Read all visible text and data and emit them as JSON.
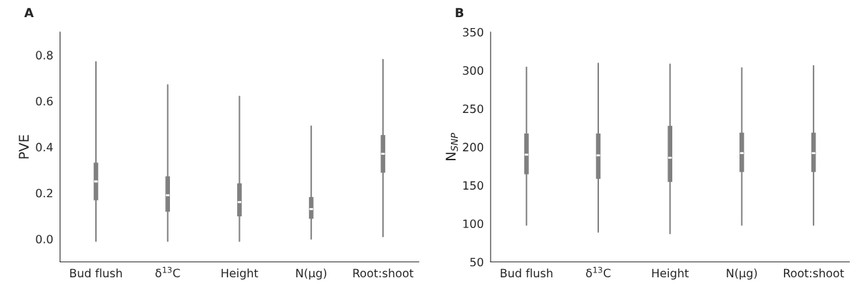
{
  "chart_data": [
    {
      "type": "box",
      "title": "A",
      "ylabel": "PVE",
      "categories": [
        "Bud flush",
        "δ$^{13}$C",
        "Height",
        "N(μg)",
        "Root:shoot"
      ],
      "series": [
        {
          "color": "#808080",
          "boxes": [
            {
              "low": -0.01,
              "q1": 0.17,
              "median": 0.25,
              "q3": 0.33,
              "high": 0.77
            },
            {
              "low": -0.01,
              "q1": 0.12,
              "median": 0.19,
              "q3": 0.27,
              "high": 0.67
            },
            {
              "low": -0.01,
              "q1": 0.1,
              "median": 0.16,
              "q3": 0.24,
              "high": 0.62
            },
            {
              "low": 0.0,
              "q1": 0.09,
              "median": 0.13,
              "q3": 0.18,
              "high": 0.49
            },
            {
              "low": 0.01,
              "q1": 0.29,
              "median": 0.37,
              "q3": 0.45,
              "high": 0.78
            }
          ]
        }
      ],
      "ylim": [
        -0.1,
        0.9
      ],
      "yticks": [
        {
          "value": 0,
          "label": "0.0"
        },
        0.2,
        0.4,
        0.6,
        0.8
      ],
      "grid": false
    },
    {
      "type": "box",
      "title": "B",
      "ylabel": "N$_{SNP}$",
      "categories": [
        "Bud flush",
        "δ$^{13}$C",
        "Height",
        "N(μg)",
        "Root:shoot"
      ],
      "series": [
        {
          "color": "#808080",
          "boxes": [
            {
              "low": 98,
              "q1": 165,
              "median": 190,
              "q3": 217,
              "high": 304
            },
            {
              "low": 89,
              "q1": 159,
              "median": 189,
              "q3": 217,
              "high": 309
            },
            {
              "low": 87,
              "q1": 155,
              "median": 186,
              "q3": 227,
              "high": 308
            },
            {
              "low": 98,
              "q1": 168,
              "median": 192,
              "q3": 218,
              "high": 303
            },
            {
              "low": 98,
              "q1": 168,
              "median": 192,
              "q3": 218,
              "high": 306
            }
          ]
        }
      ],
      "ylim": [
        50,
        350
      ],
      "yticks": [
        50,
        100,
        150,
        200,
        250,
        300,
        350
      ],
      "grid": false
    }
  ]
}
